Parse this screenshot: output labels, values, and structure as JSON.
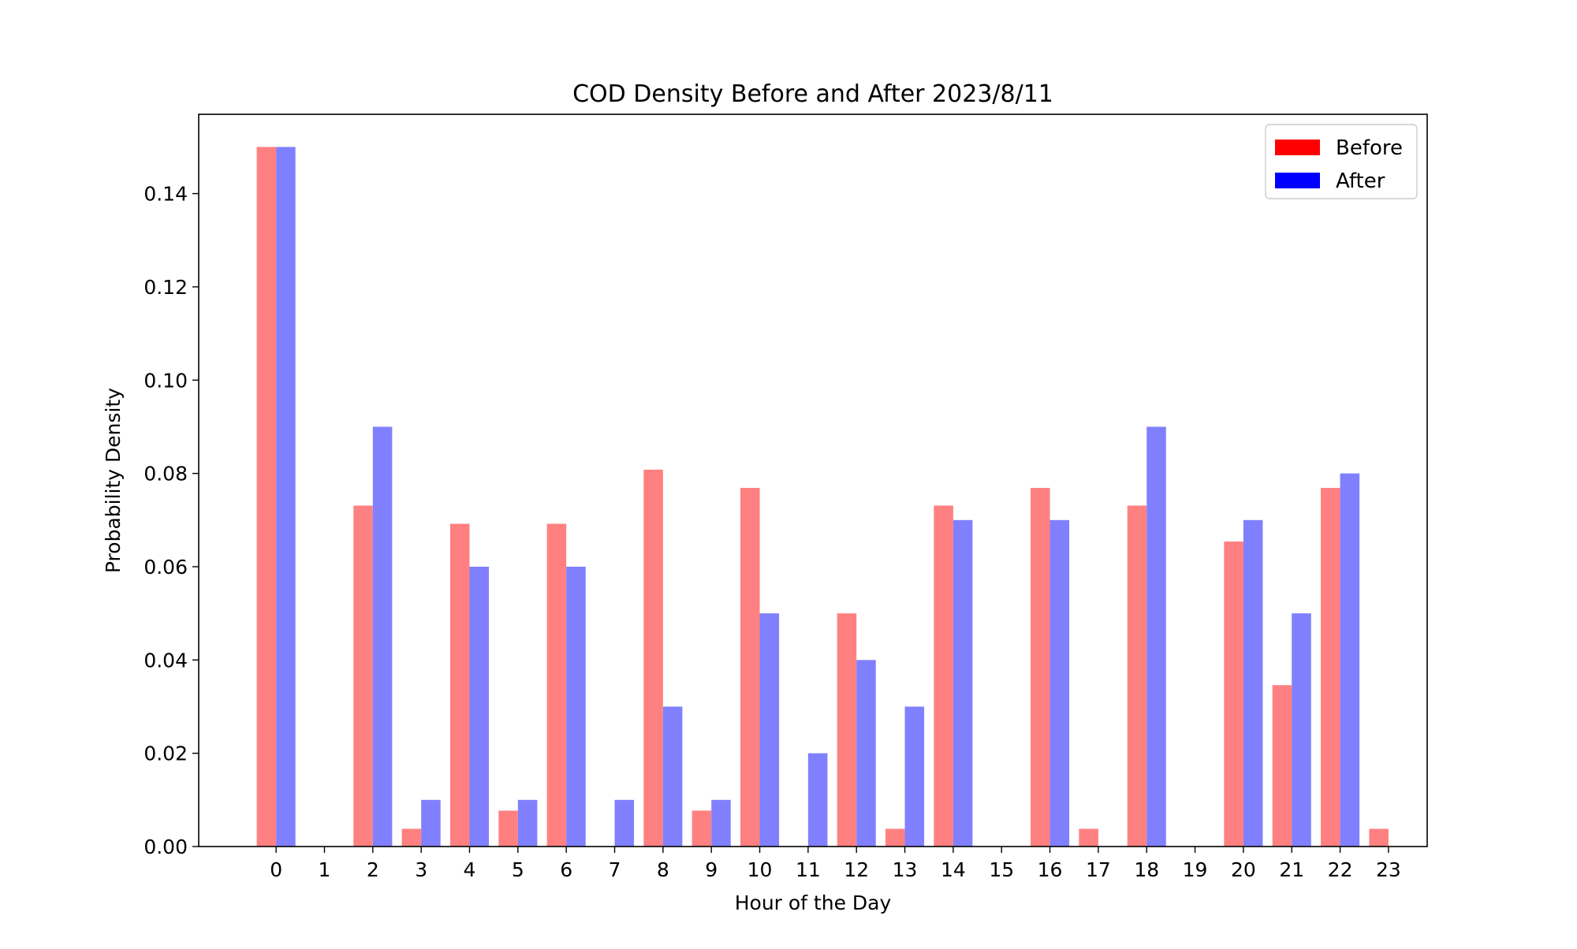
{
  "chart_data": {
    "type": "bar",
    "title": "COD Density Before and After 2023/8/11",
    "xlabel": "Hour of the Day",
    "ylabel": "Probability Density",
    "categories": [
      "0",
      "1",
      "2",
      "3",
      "4",
      "5",
      "6",
      "7",
      "8",
      "9",
      "10",
      "11",
      "12",
      "13",
      "14",
      "15",
      "16",
      "17",
      "18",
      "19",
      "20",
      "21",
      "22",
      "23"
    ],
    "x": [
      0,
      1,
      2,
      3,
      4,
      5,
      6,
      7,
      8,
      9,
      10,
      11,
      12,
      13,
      14,
      15,
      16,
      17,
      18,
      19,
      20,
      21,
      22,
      23
    ],
    "series": [
      {
        "name": "Before",
        "color": "#ff0000",
        "bar_color": "#ff8080",
        "values": [
          0.15,
          0,
          0.0731,
          0.0038,
          0.0692,
          0.0077,
          0.0692,
          0,
          0.0808,
          0.0077,
          0.0769,
          0,
          0.05,
          0.0038,
          0.0731,
          0,
          0.0769,
          0.0038,
          0.0731,
          0,
          0.0654,
          0.0346,
          0.0769,
          0.0038
        ]
      },
      {
        "name": "After",
        "color": "#0000ff",
        "bar_color": "#8080ff",
        "values": [
          0.15,
          0,
          0.09,
          0.01,
          0.06,
          0.01,
          0.06,
          0.01,
          0.03,
          0.01,
          0.05,
          0.02,
          0.04,
          0.03,
          0.07,
          0,
          0.07,
          0,
          0.09,
          0,
          0.07,
          0.05,
          0.08,
          0
        ]
      }
    ],
    "ylim": [
      0,
      0.157
    ],
    "yticks": [
      0.0,
      0.02,
      0.04,
      0.06,
      0.08,
      0.1,
      0.12,
      0.14
    ],
    "ytick_labels": [
      "0.00",
      "0.02",
      "0.04",
      "0.06",
      "0.08",
      "0.10",
      "0.12",
      "0.14"
    ],
    "xlim": [
      -1.6,
      23.8
    ],
    "grid": false,
    "legend_position": "top-right"
  }
}
